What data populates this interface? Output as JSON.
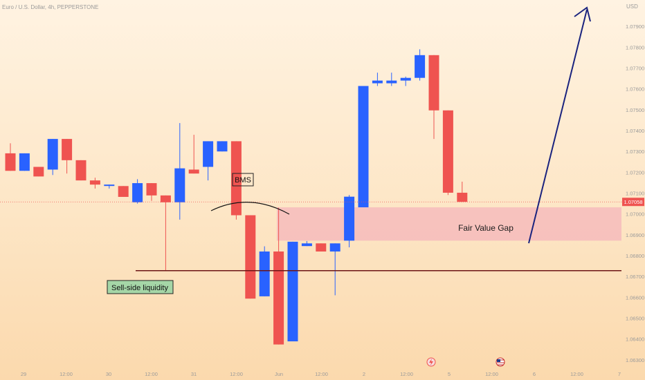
{
  "header": {
    "symbol_line": "Euro / U.S. Dollar, 4h, PEPPERSTONE",
    "currency": "USD"
  },
  "colors": {
    "bull": "#2962ff",
    "bear": "#ef5350",
    "fvg_fill": "#f4b6bb",
    "sell_line": "#6b1414",
    "arrow": "#1a237e",
    "current_price_bg": "#ef5350",
    "axis_text": "#9a9a9a",
    "sell_box_bg": "#a5d6a7"
  },
  "annotations": {
    "bms_label": "BMS",
    "fvg_label": "Fair Value Gap",
    "sell_side_label": "Sell-side liquidity"
  },
  "events": {
    "lightning_icon": "lightning-icon",
    "us_flag_icon": "us-flag-icon"
  },
  "chart_data": {
    "type": "candlestick",
    "title": "Euro / U.S. Dollar, 4h, PEPPERSTONE",
    "y_unit": "USD",
    "ylim": [
      1.0625,
      1.08
    ],
    "y_ticks": [
      "1.07900",
      "1.07800",
      "1.07700",
      "1.07600",
      "1.07500",
      "1.07400",
      "1.07300",
      "1.07200",
      "1.07100",
      "1.07000",
      "1.06900",
      "1.06800",
      "1.06700",
      "1.06600",
      "1.06500",
      "1.06400",
      "1.06300"
    ],
    "x_ticks": [
      "29",
      "12:00",
      "30",
      "12:00",
      "31",
      "12:00",
      "Jun",
      "12:00",
      "2",
      "12:00",
      "5",
      "12:00",
      "6",
      "12:00",
      "7"
    ],
    "current_price": "1.07058",
    "fair_value_gap": [
      1.06872,
      1.07032
    ],
    "sell_side_liquidity": 1.06728,
    "candles": [
      {
        "o": 1.07291,
        "h": 1.07339,
        "l": 1.07207,
        "c": 1.07207
      },
      {
        "o": 1.07207,
        "h": 1.07291,
        "l": 1.07207,
        "c": 1.07291
      },
      {
        "o": 1.07226,
        "h": 1.07226,
        "l": 1.0718,
        "c": 1.0718
      },
      {
        "o": 1.07213,
        "h": 1.0736,
        "l": 1.07187,
        "c": 1.0736
      },
      {
        "o": 1.0736,
        "h": 1.0736,
        "l": 1.07194,
        "c": 1.07258
      },
      {
        "o": 1.07258,
        "h": 1.07258,
        "l": 1.07161,
        "c": 1.07161
      },
      {
        "o": 1.07161,
        "h": 1.07174,
        "l": 1.07122,
        "c": 1.07141
      },
      {
        "o": 1.07141,
        "h": 1.07141,
        "l": 1.07122,
        "c": 1.07141
      },
      {
        "o": 1.07134,
        "h": 1.07134,
        "l": 1.07082,
        "c": 1.07082
      },
      {
        "o": 1.07056,
        "h": 1.07167,
        "l": 1.0705,
        "c": 1.07148
      },
      {
        "o": 1.07148,
        "h": 1.07148,
        "l": 1.07063,
        "c": 1.07089
      },
      {
        "o": 1.07089,
        "h": 1.07089,
        "l": 1.06728,
        "c": 1.07056
      },
      {
        "o": 1.07056,
        "h": 1.07436,
        "l": 1.06973,
        "c": 1.07219
      },
      {
        "o": 1.07213,
        "h": 1.0738,
        "l": 1.07194,
        "c": 1.07194
      },
      {
        "o": 1.07226,
        "h": 1.07349,
        "l": 1.07161,
        "c": 1.07349
      },
      {
        "o": 1.073,
        "h": 1.07349,
        "l": 1.073,
        "c": 1.07349
      },
      {
        "o": 1.07349,
        "h": 1.07349,
        "l": 1.06973,
        "c": 1.06994
      },
      {
        "o": 1.06994,
        "h": 1.06994,
        "l": 1.06594,
        "c": 1.06594
      },
      {
        "o": 1.06605,
        "h": 1.06845,
        "l": 1.06605,
        "c": 1.0682
      },
      {
        "o": 1.0682,
        "h": 1.0703,
        "l": 1.06374,
        "c": 1.06374
      },
      {
        "o": 1.06389,
        "h": 1.06867,
        "l": 1.06389,
        "c": 1.06867
      },
      {
        "o": 1.06846,
        "h": 1.0687,
        "l": 1.06846,
        "c": 1.06859
      },
      {
        "o": 1.06859,
        "h": 1.06859,
        "l": 1.0682,
        "c": 1.0682
      },
      {
        "o": 1.0682,
        "h": 1.06859,
        "l": 1.0661,
        "c": 1.06859
      },
      {
        "o": 1.06872,
        "h": 1.07091,
        "l": 1.0684,
        "c": 1.07083
      },
      {
        "o": 1.07032,
        "h": 1.07614,
        "l": 1.07032,
        "c": 1.07614
      },
      {
        "o": 1.07627,
        "h": 1.07678,
        "l": 1.07614,
        "c": 1.0764
      },
      {
        "o": 1.07627,
        "h": 1.07678,
        "l": 1.07614,
        "c": 1.0764
      },
      {
        "o": 1.0764,
        "h": 1.07659,
        "l": 1.07614,
        "c": 1.07653
      },
      {
        "o": 1.07653,
        "h": 1.0779,
        "l": 1.0764,
        "c": 1.07762
      },
      {
        "o": 1.07762,
        "h": 1.07762,
        "l": 1.0736,
        "c": 1.07497
      },
      {
        "o": 1.07497,
        "h": 1.07497,
        "l": 1.07091,
        "c": 1.07102
      },
      {
        "o": 1.07102,
        "h": 1.07155,
        "l": 1.07058,
        "c": 1.07058
      }
    ]
  }
}
